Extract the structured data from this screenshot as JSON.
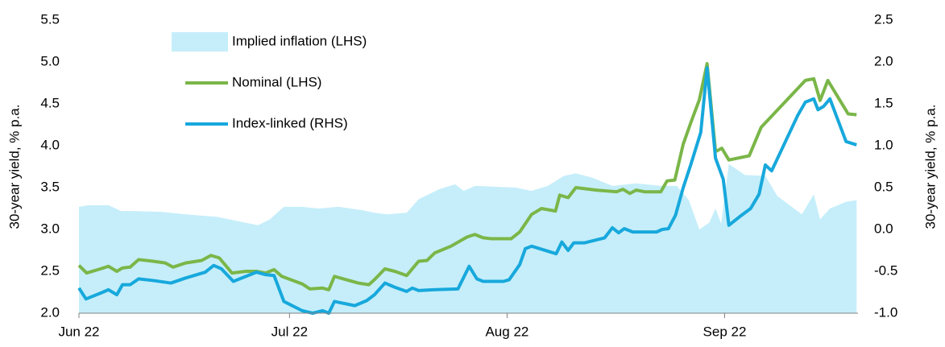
{
  "chart_data": {
    "type": "line",
    "y_label": "30-year yield, % p.a.",
    "y2_label": "30-year yield, % p.a.",
    "legend": "upper left",
    "xlim": [
      0,
      111
    ],
    "xticks": [
      {
        "value": 0,
        "label": "Jun 22"
      },
      {
        "value": 30,
        "label": "Jul 22"
      },
      {
        "value": 61,
        "label": "Aug 22"
      },
      {
        "value": 92,
        "label": "Sep 22"
      }
    ],
    "ylim": [
      2.0,
      5.5
    ],
    "yticks": [
      {
        "value": 2,
        "label": "2.0"
      },
      2.5,
      {
        "value": 3,
        "label": "3.0"
      },
      3.5,
      {
        "value": 4,
        "label": "4.0"
      },
      4.5,
      {
        "value": 5,
        "label": "5.0"
      },
      5.5
    ],
    "y2lim": [
      -1.0,
      2.5
    ],
    "y2ticks": [
      {
        "value": -1,
        "label": "-1.0"
      },
      -0.5,
      {
        "value": 0,
        "label": "0.0"
      },
      0.5,
      {
        "value": 1,
        "label": "1.0"
      },
      1.5,
      {
        "value": 2,
        "label": "2.0"
      },
      2.5
    ],
    "series": [
      {
        "name": "Implied inflation (LHS)",
        "kind": "area",
        "axis": "y",
        "color": "#c5eefa",
        "x": [
          0,
          1.4,
          4.2,
          6.0,
          7.7,
          11.7,
          15.2,
          19.7,
          22.6,
          25.5,
          27.2,
          29.2,
          31.8,
          34.1,
          37.0,
          40.4,
          42.1,
          43.9,
          46.7,
          48.4,
          51.3,
          53.6,
          54.8,
          56.5,
          62.2,
          64.5,
          66.8,
          69.1,
          70.8,
          73.1,
          76.0,
          79.4,
          82.9,
          85.2,
          86.9,
          88.4,
          89.8,
          90.7,
          91.5,
          92.6,
          94.9,
          97.8,
          99.5,
          103.0,
          104.7,
          105.6,
          107.0,
          109.3,
          110.8
        ],
        "values": [
          3.27,
          3.29,
          3.29,
          3.22,
          3.22,
          3.21,
          3.18,
          3.15,
          3.1,
          3.05,
          3.12,
          3.27,
          3.27,
          3.25,
          3.27,
          3.23,
          3.2,
          3.18,
          3.2,
          3.36,
          3.48,
          3.54,
          3.46,
          3.52,
          3.5,
          3.46,
          3.52,
          3.64,
          3.67,
          3.62,
          3.52,
          3.55,
          3.52,
          3.52,
          3.35,
          3.0,
          3.08,
          3.25,
          3.07,
          3.78,
          3.65,
          3.64,
          3.4,
          3.18,
          3.42,
          3.12,
          3.25,
          3.33,
          3.35
        ]
      },
      {
        "name": "Nominal (LHS)",
        "kind": "line",
        "axis": "y",
        "color": "#7ab648",
        "x": [
          0,
          1.1,
          3.1,
          4.2,
          5.4,
          6.2,
          7.3,
          8.5,
          10.6,
          12.3,
          13.4,
          15.2,
          17.5,
          18.8,
          20.0,
          21.8,
          23.8,
          25.3,
          26.6,
          27.8,
          28.9,
          31.8,
          32.9,
          34.7,
          35.6,
          36.4,
          38.1,
          39.8,
          41.3,
          42.1,
          43.6,
          45.0,
          46.7,
          48.4,
          49.6,
          50.7,
          53.0,
          55.3,
          56.4,
          57.6,
          58.7,
          60.5,
          61.6,
          62.8,
          64.5,
          65.9,
          67.9,
          68.5,
          69.7,
          70.8,
          73.7,
          76.6,
          77.5,
          78.5,
          79.4,
          80.6,
          82.9,
          83.8,
          84.9,
          86.1,
          87.2,
          88.4,
          89.5,
          90.7,
          91.6,
          92.6,
          95.5,
          97.2,
          103.5,
          104.7,
          105.6,
          106.7,
          109.6,
          110.8
        ],
        "values": [
          2.57,
          2.48,
          2.53,
          2.56,
          2.5,
          2.54,
          2.55,
          2.64,
          2.62,
          2.6,
          2.55,
          2.6,
          2.63,
          2.69,
          2.66,
          2.48,
          2.5,
          2.5,
          2.48,
          2.52,
          2.44,
          2.35,
          2.29,
          2.3,
          2.28,
          2.44,
          2.4,
          2.36,
          2.34,
          2.4,
          2.53,
          2.5,
          2.45,
          2.62,
          2.63,
          2.72,
          2.8,
          2.91,
          2.94,
          2.9,
          2.89,
          2.89,
          2.89,
          2.97,
          3.18,
          3.25,
          3.22,
          3.41,
          3.38,
          3.5,
          3.47,
          3.45,
          3.48,
          3.43,
          3.47,
          3.45,
          3.45,
          3.58,
          3.59,
          4.02,
          4.28,
          4.55,
          4.98,
          3.93,
          3.97,
          3.83,
          3.88,
          4.22,
          4.78,
          4.8,
          4.54,
          4.78,
          4.38,
          4.37
        ]
      },
      {
        "name": "Index-linked (RHS)",
        "kind": "line",
        "axis": "y2",
        "color": "#17a8dc",
        "x": [
          0,
          1.0,
          3.1,
          4.2,
          5.4,
          6.2,
          7.3,
          8.5,
          10.6,
          13.1,
          15.2,
          18.0,
          19.2,
          20.3,
          22.0,
          23.8,
          25.3,
          26.6,
          27.8,
          29.2,
          31.8,
          33.3,
          34.7,
          35.6,
          36.4,
          39.3,
          41.0,
          42.1,
          43.6,
          45.0,
          46.7,
          47.5,
          48.4,
          50.5,
          54.0,
          55.6,
          56.7,
          57.6,
          60.5,
          61.3,
          62.8,
          63.6,
          64.5,
          68.0,
          68.8,
          69.7,
          70.5,
          72.0,
          74.9,
          76.0,
          76.9,
          77.7,
          78.9,
          80.6,
          82.3,
          83.1,
          84.0,
          85.0,
          86.1,
          87.2,
          88.6,
          89.5,
          90.7,
          91.8,
          92.6,
          94.1,
          95.7,
          96.9,
          97.8,
          98.7,
          102.4,
          103.5,
          104.7,
          105.3,
          106.1,
          107.0,
          109.3,
          110.8
        ],
        "values": [
          -0.7,
          -0.83,
          -0.76,
          -0.72,
          -0.78,
          -0.66,
          -0.66,
          -0.59,
          -0.61,
          -0.64,
          -0.58,
          -0.51,
          -0.43,
          -0.47,
          -0.62,
          -0.56,
          -0.51,
          -0.54,
          -0.55,
          -0.86,
          -0.97,
          -1.0,
          -0.97,
          -1.0,
          -0.86,
          -0.91,
          -0.85,
          -0.78,
          -0.64,
          -0.69,
          -0.74,
          -0.7,
          -0.73,
          -0.72,
          -0.71,
          -0.44,
          -0.59,
          -0.62,
          -0.62,
          -0.6,
          -0.42,
          -0.23,
          -0.2,
          -0.29,
          -0.15,
          -0.25,
          -0.16,
          -0.16,
          -0.1,
          0.02,
          -0.04,
          0.01,
          -0.03,
          -0.03,
          -0.03,
          0.0,
          0.01,
          0.17,
          0.5,
          0.78,
          1.16,
          1.93,
          0.85,
          0.6,
          0.05,
          0.15,
          0.25,
          0.42,
          0.77,
          0.7,
          1.36,
          1.52,
          1.56,
          1.43,
          1.47,
          1.56,
          1.05,
          1.01
        ]
      }
    ]
  }
}
